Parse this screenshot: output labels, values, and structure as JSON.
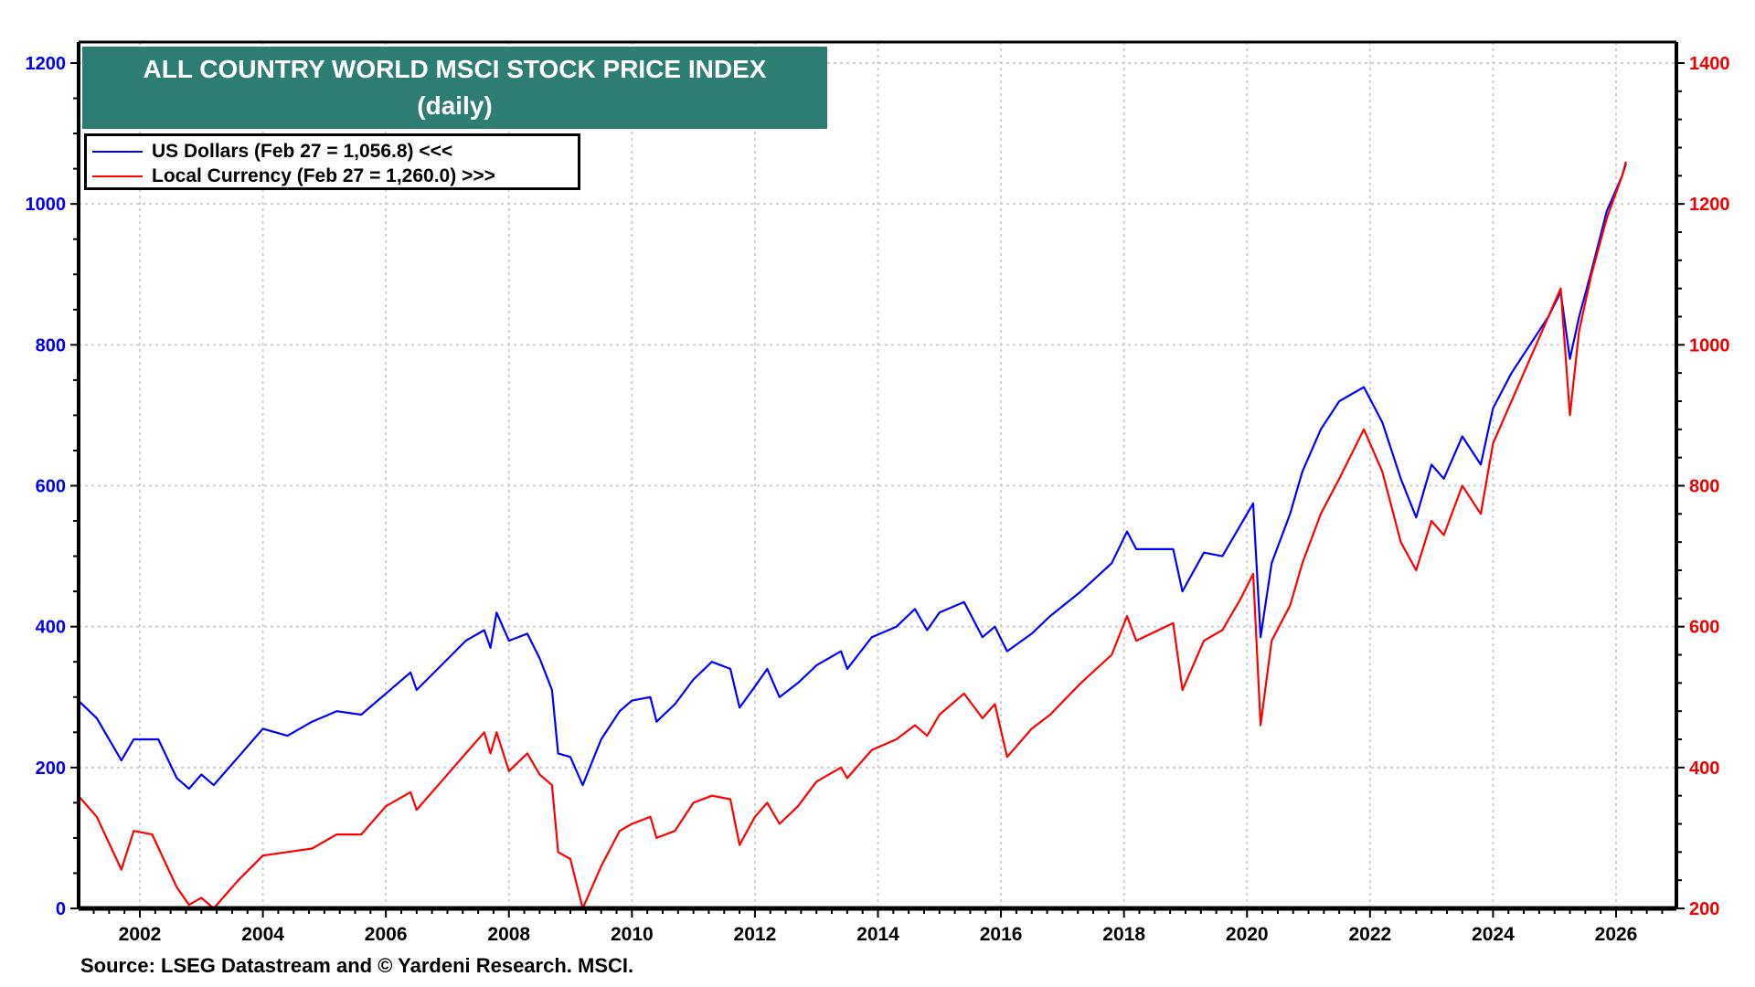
{
  "chart_data": {
    "type": "line",
    "title": "ALL COUNTRY WORLD MSCI STOCK PRICE INDEX",
    "subtitle": "(daily)",
    "source": "Source: LSEG Datastream and © Yardeni Research. MSCI.",
    "xlabel": "",
    "ylabel_left": "",
    "ylabel_right": "",
    "x_range": [
      2001.0,
      2027.0
    ],
    "x_ticks": [
      "2002",
      "2004",
      "2006",
      "2008",
      "2010",
      "2012",
      "2014",
      "2016",
      "2018",
      "2020",
      "2022",
      "2024",
      "2026"
    ],
    "y_left": {
      "range": [
        0,
        1200
      ],
      "ticks": [
        "0",
        "200",
        "400",
        "600",
        "800",
        "1000",
        "1200"
      ],
      "color": "#0000ee"
    },
    "y_right": {
      "range": [
        200,
        1400
      ],
      "ticks": [
        "200",
        "400",
        "600",
        "800",
        "1000",
        "1200",
        "1400"
      ],
      "color": "#ee0000"
    },
    "grid": true,
    "legend_position": "top-left",
    "series": [
      {
        "name": "US Dollars (Feb 27 = 1,056.8) <<<",
        "axis": "left",
        "color": "#0000ff",
        "x": [
          2001.0,
          2001.3,
          2001.7,
          2001.9,
          2002.3,
          2002.6,
          2002.8,
          2003.0,
          2003.2,
          2003.6,
          2004.0,
          2004.4,
          2004.8,
          2005.2,
          2005.6,
          2006.0,
          2006.4,
          2006.5,
          2006.9,
          2007.3,
          2007.6,
          2007.7,
          2007.8,
          2008.0,
          2008.3,
          2008.5,
          2008.7,
          2008.8,
          2009.0,
          2009.2,
          2009.5,
          2009.8,
          2010.0,
          2010.3,
          2010.4,
          2010.7,
          2011.0,
          2011.3,
          2011.6,
          2011.75,
          2012.0,
          2012.2,
          2012.4,
          2012.7,
          2013.0,
          2013.4,
          2013.5,
          2013.9,
          2014.3,
          2014.6,
          2014.8,
          2015.0,
          2015.4,
          2015.7,
          2015.9,
          2016.1,
          2016.5,
          2016.8,
          2017.3,
          2017.8,
          2018.05,
          2018.2,
          2018.8,
          2018.95,
          2019.3,
          2019.6,
          2019.9,
          2020.1,
          2020.22,
          2020.4,
          2020.7,
          2020.9,
          2021.2,
          2021.5,
          2021.9,
          2022.2,
          2022.5,
          2022.75,
          2023.0,
          2023.2,
          2023.5,
          2023.8,
          2024.0,
          2024.3,
          2024.6,
          2024.9,
          2025.1,
          2025.25,
          2025.4,
          2025.6,
          2025.85,
          2026.1,
          2026.16
        ],
        "values": [
          295,
          270,
          210,
          240,
          240,
          185,
          170,
          190,
          175,
          215,
          255,
          245,
          265,
          280,
          275,
          305,
          335,
          310,
          345,
          380,
          395,
          370,
          420,
          380,
          390,
          355,
          310,
          220,
          215,
          175,
          240,
          280,
          295,
          300,
          265,
          290,
          325,
          350,
          340,
          285,
          315,
          340,
          300,
          320,
          345,
          365,
          340,
          385,
          400,
          425,
          395,
          420,
          435,
          385,
          400,
          365,
          390,
          415,
          450,
          490,
          535,
          510,
          510,
          450,
          505,
          500,
          545,
          575,
          385,
          490,
          560,
          620,
          680,
          720,
          740,
          690,
          610,
          555,
          630,
          610,
          670,
          630,
          710,
          760,
          800,
          840,
          875,
          780,
          840,
          905,
          990,
          1040,
          1056.8
        ]
      },
      {
        "name": "Local Currency (Feb 27 = 1,260.0) >>>",
        "axis": "right",
        "color": "#ff0000",
        "x": [
          2001.0,
          2001.3,
          2001.7,
          2001.9,
          2002.2,
          2002.6,
          2002.8,
          2003.0,
          2003.2,
          2003.6,
          2004.0,
          2004.4,
          2004.8,
          2005.2,
          2005.6,
          2006.0,
          2006.4,
          2006.5,
          2006.9,
          2007.3,
          2007.6,
          2007.7,
          2007.8,
          2008.0,
          2008.3,
          2008.5,
          2008.7,
          2008.8,
          2009.0,
          2009.2,
          2009.5,
          2009.8,
          2010.0,
          2010.3,
          2010.4,
          2010.7,
          2011.0,
          2011.3,
          2011.6,
          2011.75,
          2012.0,
          2012.2,
          2012.4,
          2012.7,
          2013.0,
          2013.4,
          2013.5,
          2013.9,
          2014.3,
          2014.6,
          2014.8,
          2015.0,
          2015.4,
          2015.7,
          2015.9,
          2016.1,
          2016.5,
          2016.8,
          2017.3,
          2017.8,
          2018.05,
          2018.2,
          2018.8,
          2018.95,
          2019.3,
          2019.6,
          2019.9,
          2020.1,
          2020.22,
          2020.4,
          2020.7,
          2020.9,
          2021.2,
          2021.5,
          2021.9,
          2022.2,
          2022.5,
          2022.75,
          2023.0,
          2023.2,
          2023.5,
          2023.8,
          2024.0,
          2024.3,
          2024.6,
          2024.9,
          2025.1,
          2025.25,
          2025.4,
          2025.6,
          2025.85,
          2026.1,
          2026.16
        ],
        "values": [
          360,
          330,
          255,
          310,
          305,
          230,
          205,
          215,
          200,
          240,
          275,
          280,
          285,
          305,
          305,
          345,
          365,
          340,
          380,
          420,
          450,
          420,
          450,
          395,
          420,
          390,
          375,
          280,
          270,
          200,
          260,
          310,
          320,
          330,
          300,
          310,
          350,
          360,
          355,
          290,
          330,
          350,
          320,
          345,
          380,
          400,
          385,
          425,
          440,
          460,
          445,
          475,
          505,
          470,
          490,
          415,
          455,
          475,
          520,
          560,
          615,
          580,
          605,
          510,
          580,
          595,
          640,
          675,
          460,
          580,
          630,
          690,
          760,
          810,
          880,
          820,
          720,
          680,
          750,
          730,
          800,
          760,
          860,
          920,
          980,
          1040,
          1080,
          900,
          1020,
          1100,
          1180,
          1240,
          1260
        ]
      }
    ]
  }
}
